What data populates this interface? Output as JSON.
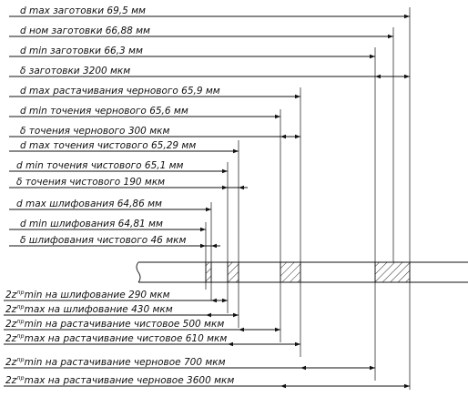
{
  "top_labels": [
    {
      "id": "d_max_blank",
      "text": "d max заготовки 69,5 мм"
    },
    {
      "id": "d_nom_blank",
      "text": "d ном заготовки 66,88 мм"
    },
    {
      "id": "d_min_blank",
      "text": "d min заготовки 66,3 мм"
    },
    {
      "id": "delta_blank",
      "text": "δ заготовки 3200 мкм"
    },
    {
      "id": "d_max_rough_bore",
      "text": "d max растачивания чернового 65,9 мм"
    },
    {
      "id": "d_min_rough_turn",
      "text": "d min точения чернового 65,6 мм"
    },
    {
      "id": "delta_rough_turn",
      "text": "δ точения чернового 300 мкм"
    },
    {
      "id": "d_max_finish_turn",
      "text": "d max точения чистового 65,29 мм"
    },
    {
      "id": "d_min_finish_turn",
      "text": "d min точения чистового 65,1 мм"
    },
    {
      "id": "delta_finish_turn",
      "text": "δ точения чистового 190 мкм"
    },
    {
      "id": "d_max_grind",
      "text": "d max шлифования 64,86 мм"
    },
    {
      "id": "d_min_grind",
      "text": "d min шлифования 64,81 мм"
    },
    {
      "id": "delta_finish_grind",
      "text": "δ шлифования чистового 46 мкм"
    }
  ],
  "bottom_labels": [
    {
      "id": "z_min_grind",
      "base": "2z",
      "sup": "пр",
      "text": "min на шлифование 290 мкм"
    },
    {
      "id": "z_max_grind",
      "base": "2z",
      "sup": "пр",
      "text": "max на шлифование 430 мкм"
    },
    {
      "id": "z_min_finish_bore",
      "base": "2z",
      "sup": "пр",
      "text": "min на растачивание чистовое 500 мкм"
    },
    {
      "id": "z_max_finish_bore",
      "base": "2z",
      "sup": "пр",
      "text": "max на растачивание чистовое 610 мкм"
    },
    {
      "id": "z_min_rough_bore",
      "base": "2z",
      "sup": "пр",
      "text": "min   на растачивание черновое 700 мкм"
    },
    {
      "id": "z_max_rough_bore",
      "base": "2z",
      "sup": "пр",
      "text": "max на растачивание черновое 3600 мкм"
    }
  ]
}
